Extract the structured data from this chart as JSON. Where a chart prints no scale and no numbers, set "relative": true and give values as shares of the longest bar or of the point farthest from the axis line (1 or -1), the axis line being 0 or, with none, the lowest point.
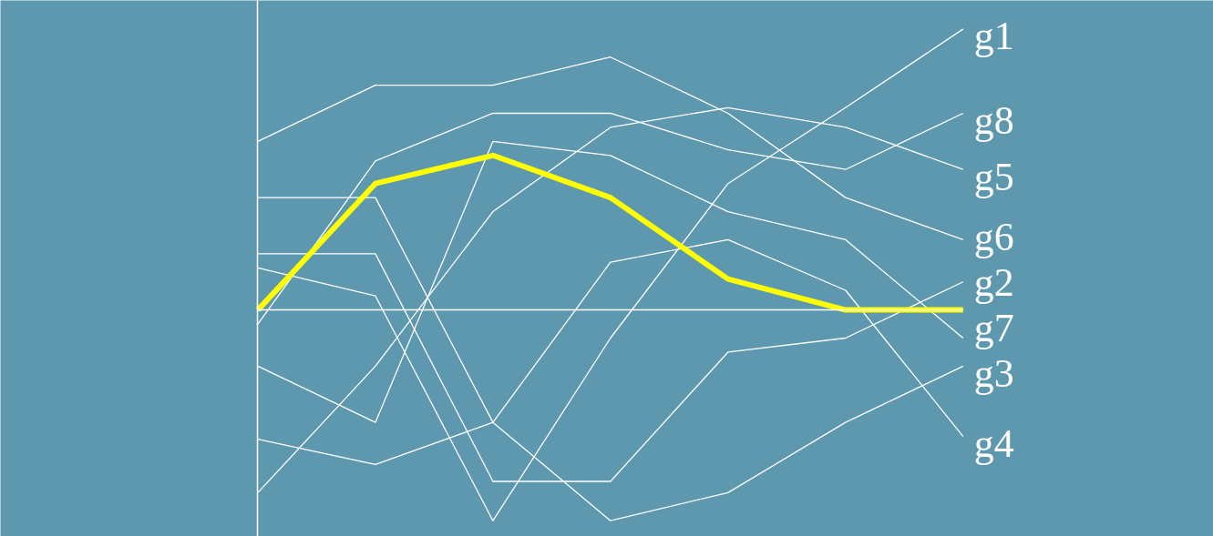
{
  "chart_data": {
    "type": "line",
    "relative": true,
    "marker": "none",
    "line_style": "solid",
    "categories": [
      null,
      null,
      null,
      null,
      null,
      null,
      null
    ],
    "series": [
      {
        "name": "g1",
        "color": "#ffffff",
        "values": [
          0.15,
          0.05,
          -0.75,
          -0.1,
          0.45,
          0.72,
          1.0
        ]
      },
      {
        "name": "g2",
        "color": "#ffffff",
        "values": [
          0.2,
          0.2,
          -0.61,
          -0.61,
          -0.15,
          -0.1,
          0.1
        ]
      },
      {
        "name": "g3",
        "color": "#ffffff",
        "values": [
          0.4,
          0.4,
          -0.4,
          -0.75,
          -0.65,
          -0.4,
          -0.2
        ]
      },
      {
        "name": "g4",
        "color": "#ffffff",
        "values": [
          -0.46,
          -0.55,
          -0.4,
          0.17,
          0.25,
          0.07,
          -0.45
        ]
      },
      {
        "name": "g5",
        "color": "#ffffff",
        "values": [
          -0.65,
          -0.2,
          0.35,
          0.65,
          0.72,
          0.65,
          0.5
        ]
      },
      {
        "name": "g6",
        "color": "#ffffff",
        "values": [
          0.6,
          0.8,
          0.8,
          0.9,
          0.7,
          0.4,
          0.25
        ]
      },
      {
        "name": "g7",
        "color": "#ffffff",
        "values": [
          -0.2,
          -0.4,
          0.6,
          0.55,
          0.35,
          0.25,
          -0.1
        ]
      },
      {
        "name": "g8",
        "color": "#ffffff",
        "values": [
          -0.05,
          0.53,
          0.7,
          0.7,
          0.57,
          0.5,
          0.7
        ]
      },
      {
        "color": "#ffff00",
        "values": [
          0,
          0.45,
          0.55,
          0.4,
          0.11,
          0,
          0
        ]
      }
    ]
  }
}
